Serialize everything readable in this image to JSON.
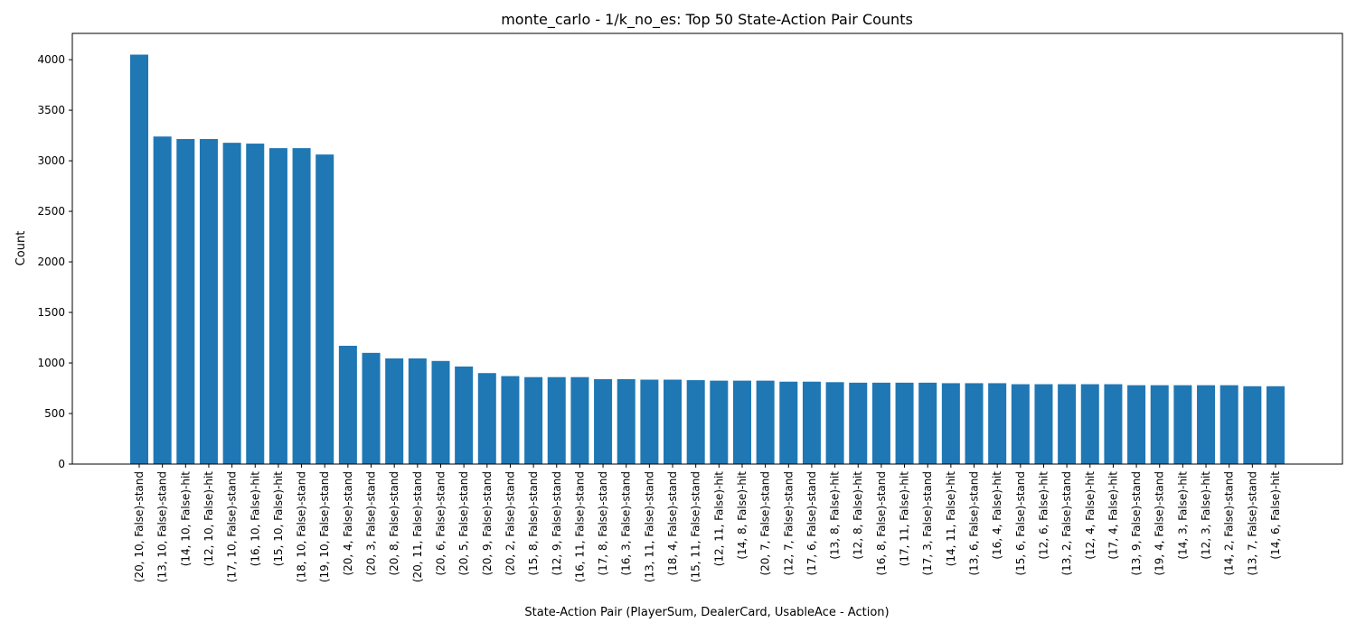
{
  "chart_data": {
    "type": "bar",
    "title": "monte_carlo - 1/k_no_es: Top 50 State-Action Pair Counts",
    "xlabel": "State-Action Pair (PlayerSum, DealerCard, UsableAce - Action)",
    "ylabel": "Count",
    "ylim": [
      0,
      4260
    ],
    "yticks": [
      0,
      500,
      1000,
      1500,
      2000,
      2500,
      3000,
      3500,
      4000
    ],
    "grid": false,
    "bar_color": "#1f77b4",
    "categories": [
      "(20, 10, False)-stand",
      "(13, 10, False)-stand",
      "(14, 10, False)-hit",
      "(12, 10, False)-hit",
      "(17, 10, False)-stand",
      "(16, 10, False)-hit",
      "(15, 10, False)-hit",
      "(18, 10, False)-stand",
      "(19, 10, False)-stand",
      "(20, 4, False)-stand",
      "(20, 3, False)-stand",
      "(20, 8, False)-stand",
      "(20, 11, False)-stand",
      "(20, 6, False)-stand",
      "(20, 5, False)-stand",
      "(20, 9, False)-stand",
      "(20, 2, False)-stand",
      "(15, 8, False)-stand",
      "(12, 9, False)-stand",
      "(16, 11, False)-stand",
      "(17, 8, False)-stand",
      "(16, 3, False)-stand",
      "(13, 11, False)-stand",
      "(18, 4, False)-stand",
      "(15, 11, False)-stand",
      "(12, 11, False)-hit",
      "(14, 8, False)-hit",
      "(20, 7, False)-stand",
      "(12, 7, False)-stand",
      "(17, 6, False)-stand",
      "(13, 8, False)-hit",
      "(12, 8, False)-hit",
      "(16, 8, False)-stand",
      "(17, 11, False)-hit",
      "(17, 3, False)-stand",
      "(14, 11, False)-hit",
      "(13, 6, False)-stand",
      "(16, 4, False)-hit",
      "(15, 6, False)-stand",
      "(12, 6, False)-hit",
      "(13, 2, False)-stand",
      "(12, 4, False)-hit",
      "(17, 4, False)-hit",
      "(13, 9, False)-stand",
      "(19, 4, False)-stand",
      "(14, 3, False)-hit",
      "(12, 3, False)-hit",
      "(14, 2, False)-stand",
      "(13, 7, False)-stand",
      "(14, 6, False)-hit"
    ],
    "values": [
      4050,
      3240,
      3215,
      3215,
      3178,
      3170,
      3125,
      3125,
      3062,
      1170,
      1100,
      1045,
      1045,
      1020,
      965,
      900,
      870,
      860,
      860,
      860,
      840,
      840,
      835,
      835,
      830,
      825,
      825,
      825,
      815,
      815,
      810,
      805,
      805,
      805,
      805,
      800,
      800,
      800,
      790,
      790,
      790,
      790,
      790,
      780,
      780,
      780,
      780,
      780,
      770,
      770
    ]
  }
}
